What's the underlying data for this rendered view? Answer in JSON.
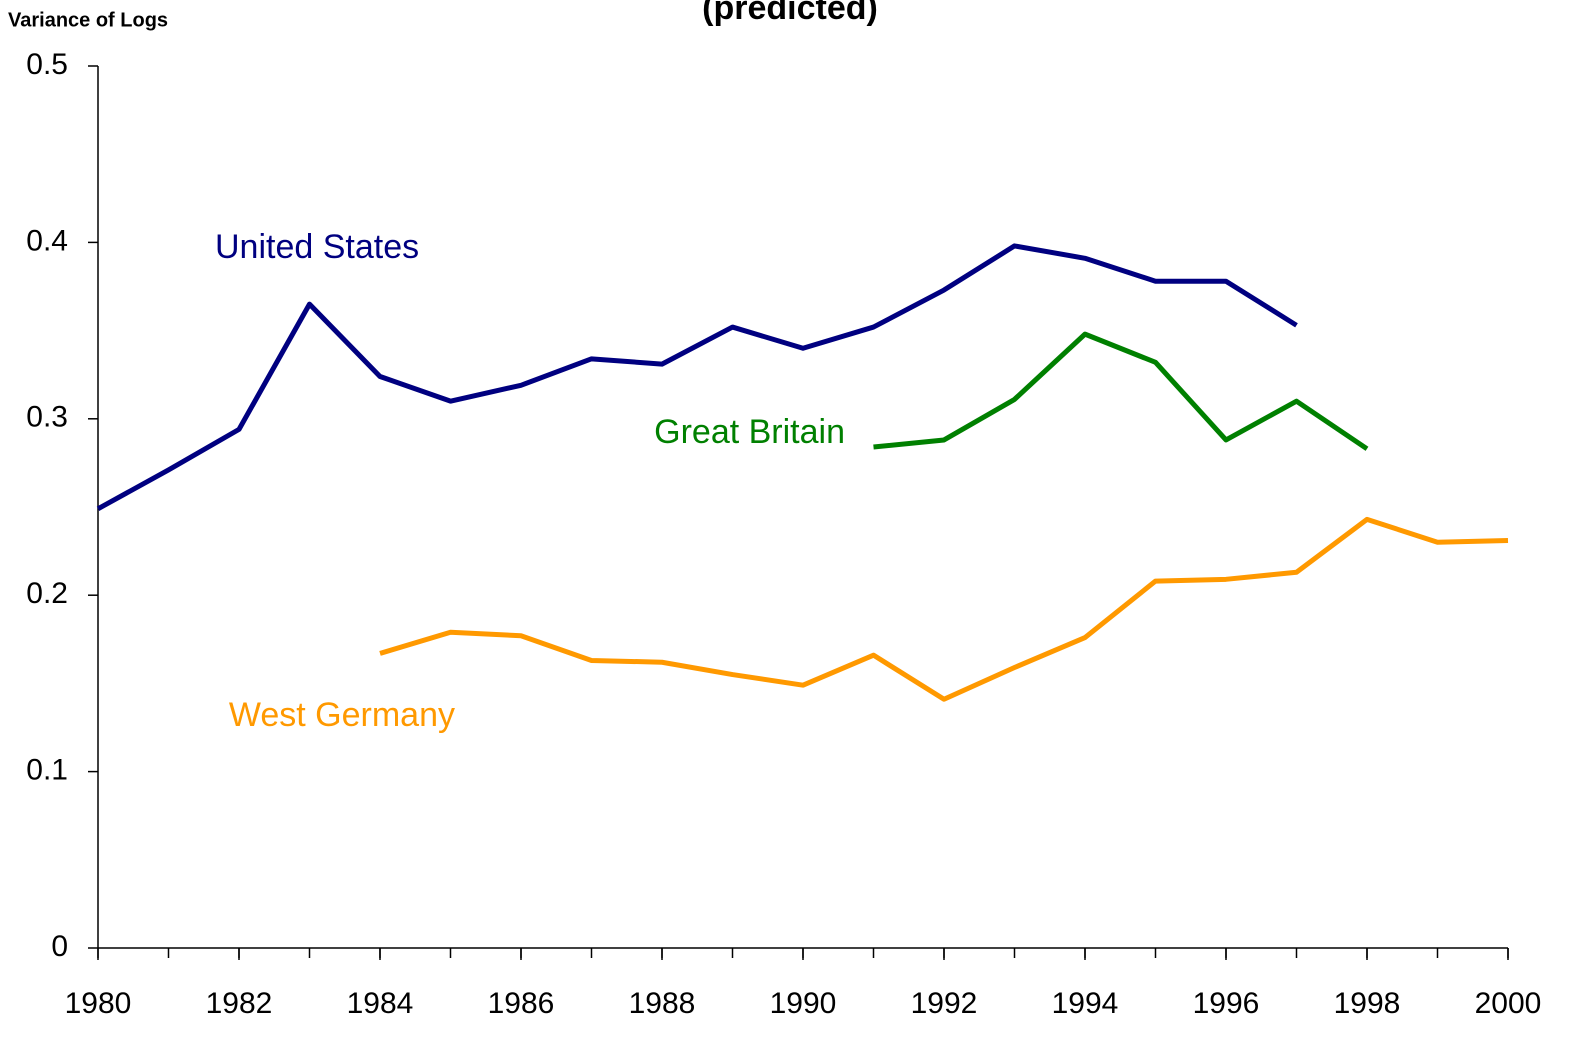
{
  "chart_data": {
    "type": "line",
    "title": "(predicted)",
    "y_label": "Variance of Logs",
    "x": [
      1980,
      1981,
      1982,
      1983,
      1984,
      1985,
      1986,
      1987,
      1988,
      1989,
      1990,
      1991,
      1992,
      1993,
      1994,
      1995,
      1996,
      1997,
      1998,
      1999,
      2000
    ],
    "xlim": [
      1980,
      2000
    ],
    "xticks": [
      1980,
      1982,
      1984,
      1986,
      1988,
      1990,
      1992,
      1994,
      1996,
      1998,
      2000
    ],
    "ylim": [
      0,
      0.5
    ],
    "yticks": [
      0,
      0.1,
      0.2,
      0.3,
      0.4,
      0.5
    ],
    "grid": false,
    "series": [
      {
        "name": "United States",
        "color": "#000080",
        "values": [
          0.249,
          0.271,
          0.294,
          0.365,
          0.324,
          0.31,
          0.319,
          0.334,
          0.331,
          0.352,
          0.34,
          0.352,
          0.373,
          0.398,
          0.391,
          0.378,
          0.378,
          0.353,
          null,
          null,
          null
        ]
      },
      {
        "name": "Great Britain",
        "color": "#008000",
        "values": [
          null,
          null,
          null,
          null,
          null,
          null,
          null,
          null,
          null,
          null,
          null,
          0.284,
          0.288,
          0.311,
          0.348,
          0.332,
          0.288,
          0.31,
          0.283,
          null,
          null
        ]
      },
      {
        "name": "West Germany",
        "color": "#FF9900",
        "values": [
          null,
          null,
          null,
          null,
          0.167,
          0.179,
          0.177,
          0.163,
          0.162,
          0.155,
          0.149,
          0.166,
          0.141,
          0.159,
          0.176,
          0.208,
          0.209,
          0.213,
          0.243,
          0.23,
          0.231
        ]
      }
    ]
  }
}
